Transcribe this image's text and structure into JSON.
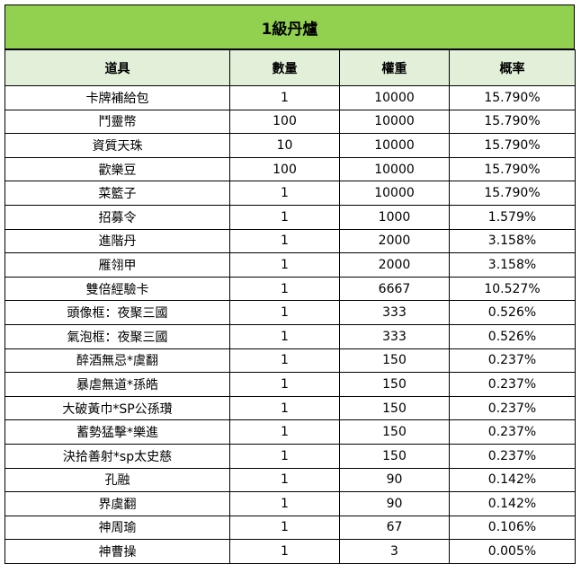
{
  "title": "1級丹爐",
  "headers": [
    "道具",
    "數量",
    "權重",
    "概率"
  ],
  "rows": [
    [
      "卡牌補給包",
      "1",
      "10000",
      "15.790%"
    ],
    [
      "鬥靈幣",
      "100",
      "10000",
      "15.790%"
    ],
    [
      "資質天珠",
      "10",
      "10000",
      "15.790%"
    ],
    [
      "歡樂豆",
      "100",
      "10000",
      "15.790%"
    ],
    [
      "菜籃子",
      "1",
      "10000",
      "15.790%"
    ],
    [
      "招募令",
      "1",
      "1000",
      "1.579%"
    ],
    [
      "進階丹",
      "1",
      "2000",
      "3.158%"
    ],
    [
      "雁翎甲",
      "1",
      "2000",
      "3.158%"
    ],
    [
      "雙倍經驗卡",
      "1",
      "6667",
      "10.527%"
    ],
    [
      "頭像框：夜聚三國",
      "1",
      "333",
      "0.526%"
    ],
    [
      "氣泡框：夜聚三國",
      "1",
      "333",
      "0.526%"
    ],
    [
      "醉酒無忌*虞翻",
      "1",
      "150",
      "0.237%"
    ],
    [
      "暴虐無道*孫皓",
      "1",
      "150",
      "0.237%"
    ],
    [
      "大破黃巾*SP公孫瓚",
      "1",
      "150",
      "0.237%"
    ],
    [
      "蓄勢猛擊*樂進",
      "1",
      "150",
      "0.237%"
    ],
    [
      "決拾善射*sp太史慈",
      "1",
      "150",
      "0.237%"
    ],
    [
      "孔融",
      "1",
      "90",
      "0.142%"
    ],
    [
      "界虞翻",
      "1",
      "90",
      "0.142%"
    ],
    [
      "神周瑜",
      "1",
      "67",
      "0.106%"
    ],
    [
      "神曹操",
      "1",
      "3",
      "0.005%"
    ]
  ]
}
